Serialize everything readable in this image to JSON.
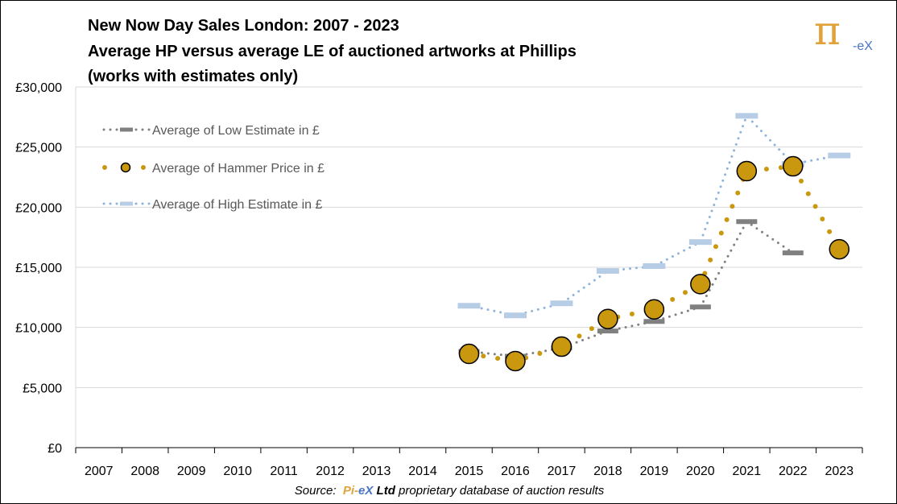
{
  "title_lines": [
    "New Now Day Sales London: 2007 - 2023",
    "Average HP versus average LE of auctioned artworks at Phillips",
    "(works with estimates only)"
  ],
  "logo": {
    "pi": "π",
    "ex": "-eX"
  },
  "source": {
    "prefix": "Source:",
    "brand_pi": "Pi-",
    "brand_ex": "eX",
    "brand_ltd": "Ltd",
    "suffix": "proprietary database of auction results"
  },
  "colors": {
    "low": "#808080",
    "hammer": "#c9980f",
    "high": "#b7cde6",
    "high_line": "#8eb4dc",
    "grid": "#d9d9d9"
  },
  "chart_data": {
    "type": "line",
    "categories": [
      "2007",
      "2008",
      "2009",
      "2010",
      "2011",
      "2012",
      "2013",
      "2014",
      "2015",
      "2016",
      "2017",
      "2018",
      "2019",
      "2020",
      "2021",
      "2022",
      "2023"
    ],
    "y_ticks": [
      "£0",
      "£5,000",
      "£10,000",
      "£15,000",
      "£20,000",
      "£25,000",
      "£30,000"
    ],
    "ylim": [
      0,
      30000
    ],
    "grid": true,
    "legend_position": "top-left",
    "series": [
      {
        "name": "Average of Low Estimate in £",
        "key": "low",
        "values": [
          null,
          null,
          null,
          null,
          null,
          null,
          null,
          null,
          8000,
          7600,
          8300,
          9700,
          10500,
          11700,
          18800,
          16200,
          null
        ]
      },
      {
        "name": "Average of Hammer Price in £",
        "key": "hammer",
        "values": [
          null,
          null,
          null,
          null,
          null,
          null,
          null,
          null,
          7800,
          7200,
          8400,
          10700,
          11500,
          13600,
          23000,
          23400,
          16500
        ]
      },
      {
        "name": "Average of High Estimate in £",
        "key": "high",
        "values": [
          null,
          null,
          null,
          null,
          null,
          null,
          null,
          null,
          11800,
          11000,
          12000,
          14700,
          15100,
          17100,
          27600,
          23600,
          24300
        ]
      }
    ]
  }
}
